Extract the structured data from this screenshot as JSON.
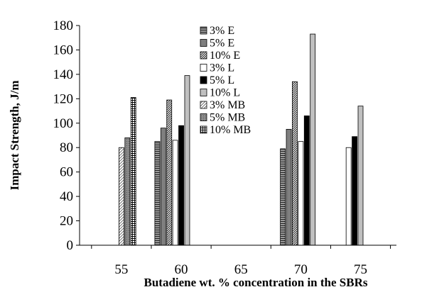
{
  "chart_data": {
    "type": "bar",
    "xlabel": "Butadiene wt. % concentration in the SBRs",
    "ylabel": "Impact Strength, J/m",
    "xlim": [
      51.5,
      78
    ],
    "ylim": [
      0,
      180
    ],
    "x_ticks": [
      "55",
      "60",
      "65",
      "70",
      "75"
    ],
    "y_ticks": [
      "0",
      "20",
      "40",
      "60",
      "80",
      "100",
      "120",
      "140",
      "160",
      "180"
    ],
    "grid": false,
    "legend_position": "top-center",
    "series": [
      {
        "name": "3% E",
        "fill": "hlines-dark",
        "x": [
          58.0,
          68.5
        ],
        "values": [
          85,
          79
        ]
      },
      {
        "name": "5% E",
        "fill": "gray",
        "x": [
          58.5,
          69.0
        ],
        "values": [
          96,
          95
        ]
      },
      {
        "name": "10% E",
        "fill": "diag-dense",
        "x": [
          59.0,
          69.5
        ],
        "values": [
          119,
          134
        ]
      },
      {
        "name": "3% L",
        "fill": "white",
        "x": [
          59.5,
          70.0,
          74.0
        ],
        "values": [
          86,
          85,
          80
        ]
      },
      {
        "name": "5% L",
        "fill": "black",
        "x": [
          60.0,
          70.5,
          74.5
        ],
        "values": [
          98,
          106,
          89
        ]
      },
      {
        "name": "10% L",
        "fill": "light-gray",
        "x": [
          60.5,
          71.0,
          75.0
        ],
        "values": [
          139,
          173,
          114
        ]
      },
      {
        "name": "3% MB",
        "fill": "diag-light",
        "x": [
          55.0
        ],
        "values": [
          80
        ]
      },
      {
        "name": "5% MB",
        "fill": "gray-dots",
        "x": [
          55.5
        ],
        "values": [
          88
        ]
      },
      {
        "name": "10% MB",
        "fill": "grid",
        "x": [
          56.0
        ],
        "values": [
          121
        ]
      }
    ]
  }
}
